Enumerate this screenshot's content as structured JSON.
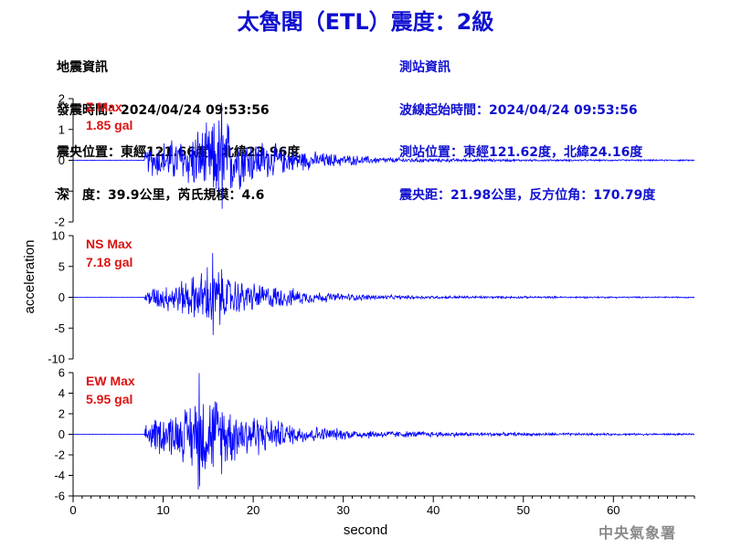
{
  "title": "太魯閣（ETL）震度：2級",
  "earthquake_info": {
    "heading": "地震資訊",
    "origin_time": "發震時間：2024/04/24 09:53:56",
    "epicenter": "震央位置：東經121.66度，北緯23.96度",
    "depth_magnitude": "深　度：39.9公里，芮氏規模：4.6"
  },
  "station_info": {
    "heading": "測站資訊",
    "wave_start_time": "波線起始時間：2024/04/24 09:53:56",
    "station_location": "測站位置：東經121.62度，北緯24.16度",
    "distance_azimuth": "震央距：21.98公里，反方位角：170.79度"
  },
  "agency": "中央氣象署",
  "colors": {
    "trace": "#0000ff",
    "title": "#1010d0",
    "max_label": "#dd1111",
    "axis": "#000000"
  },
  "chart_data": {
    "type": "line",
    "xlabel": "second",
    "ylabel": "acceleration",
    "xlim": [
      0,
      69
    ],
    "xticks": [
      0,
      10,
      20,
      30,
      40,
      50,
      60
    ],
    "grid": false,
    "shared_x": true,
    "panels": [
      {
        "component": "Z",
        "max_label": "Z Max",
        "max_value": "1.85 gal",
        "ylim": [
          -2,
          2
        ],
        "yticks": [
          -2,
          -1,
          0,
          1,
          2
        ],
        "envelope": [
          [
            0,
            0.01
          ],
          [
            7.9,
            0.01
          ],
          [
            8.0,
            0.3
          ],
          [
            8.4,
            0.55
          ],
          [
            10,
            0.75
          ],
          [
            12,
            0.85
          ],
          [
            13.5,
            1.15
          ],
          [
            15,
            1.3
          ],
          [
            16.5,
            1.85
          ],
          [
            18,
            1.15
          ],
          [
            20,
            0.85
          ],
          [
            21.5,
            0.7
          ],
          [
            24,
            0.45
          ],
          [
            27,
            0.32
          ],
          [
            30,
            0.22
          ],
          [
            35,
            0.11
          ],
          [
            40,
            0.07
          ],
          [
            50,
            0.04
          ],
          [
            60,
            0.03
          ],
          [
            69,
            0.025
          ]
        ]
      },
      {
        "component": "NS",
        "max_label": "NS Max",
        "max_value": "7.18 gal",
        "ylim": [
          -10,
          10
        ],
        "yticks": [
          -10,
          -5,
          0,
          5,
          10
        ],
        "envelope": [
          [
            0,
            0.02
          ],
          [
            7.9,
            0.02
          ],
          [
            8.0,
            1.0
          ],
          [
            8.4,
            1.8
          ],
          [
            10,
            2.4
          ],
          [
            12,
            3.2
          ],
          [
            14,
            4.5
          ],
          [
            15.5,
            7.18
          ],
          [
            17,
            4.2
          ],
          [
            19,
            3.0
          ],
          [
            21,
            2.5
          ],
          [
            23,
            2.0
          ],
          [
            26,
            1.2
          ],
          [
            30,
            0.7
          ],
          [
            35,
            0.4
          ],
          [
            40,
            0.3
          ],
          [
            50,
            0.2
          ],
          [
            60,
            0.15
          ],
          [
            69,
            0.12
          ]
        ]
      },
      {
        "component": "EW",
        "max_label": "EW Max",
        "max_value": "5.95 gal",
        "ylim": [
          -6,
          6
        ],
        "yticks": [
          -6,
          -4,
          -2,
          0,
          2,
          4,
          6
        ],
        "envelope": [
          [
            0,
            0.02
          ],
          [
            7.9,
            0.02
          ],
          [
            8.0,
            1.2
          ],
          [
            8.4,
            1.8
          ],
          [
            10,
            2.3
          ],
          [
            12,
            2.7
          ],
          [
            13,
            3.6
          ],
          [
            14,
            5.95
          ],
          [
            15,
            4.2
          ],
          [
            16,
            4.6
          ],
          [
            18,
            3.0
          ],
          [
            20,
            2.5
          ],
          [
            22,
            1.9
          ],
          [
            24,
            1.2
          ],
          [
            27,
            0.9
          ],
          [
            30,
            0.6
          ],
          [
            35,
            0.4
          ],
          [
            40,
            0.3
          ],
          [
            50,
            0.18
          ],
          [
            60,
            0.12
          ],
          [
            69,
            0.1
          ]
        ]
      }
    ]
  }
}
